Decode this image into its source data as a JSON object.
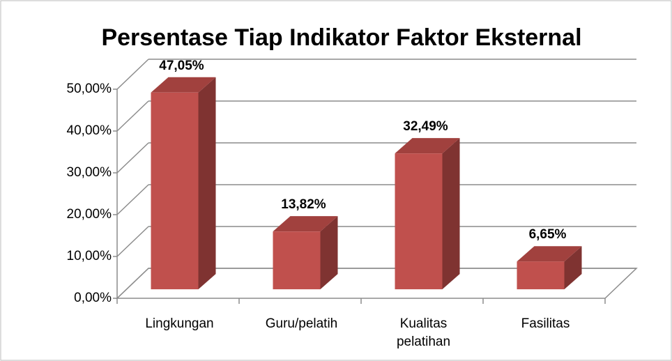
{
  "chart_data": {
    "type": "bar3d",
    "title": "Persentase Tiap Indikator Faktor Eksternal",
    "categories": [
      "Lingkungan",
      "Guru/pelatih",
      "Kualitas pelatihan",
      "Fasilitas"
    ],
    "values": [
      47.05,
      13.82,
      32.49,
      6.65
    ],
    "value_labels": [
      "47,05%",
      "13,82%",
      "32,49%",
      "6,65%"
    ],
    "color": "#c0504d",
    "ylim": [
      0,
      50
    ],
    "yticks": [
      {
        "value": 0,
        "label": "0,00%"
      },
      {
        "value": 10,
        "label": "10,00%"
      },
      {
        "value": 20,
        "label": "20,00%"
      },
      {
        "value": 30,
        "label": "30,00%"
      },
      {
        "value": 40,
        "label": "40,00%"
      },
      {
        "value": 50,
        "label": "50,00%"
      }
    ],
    "grid": true
  }
}
